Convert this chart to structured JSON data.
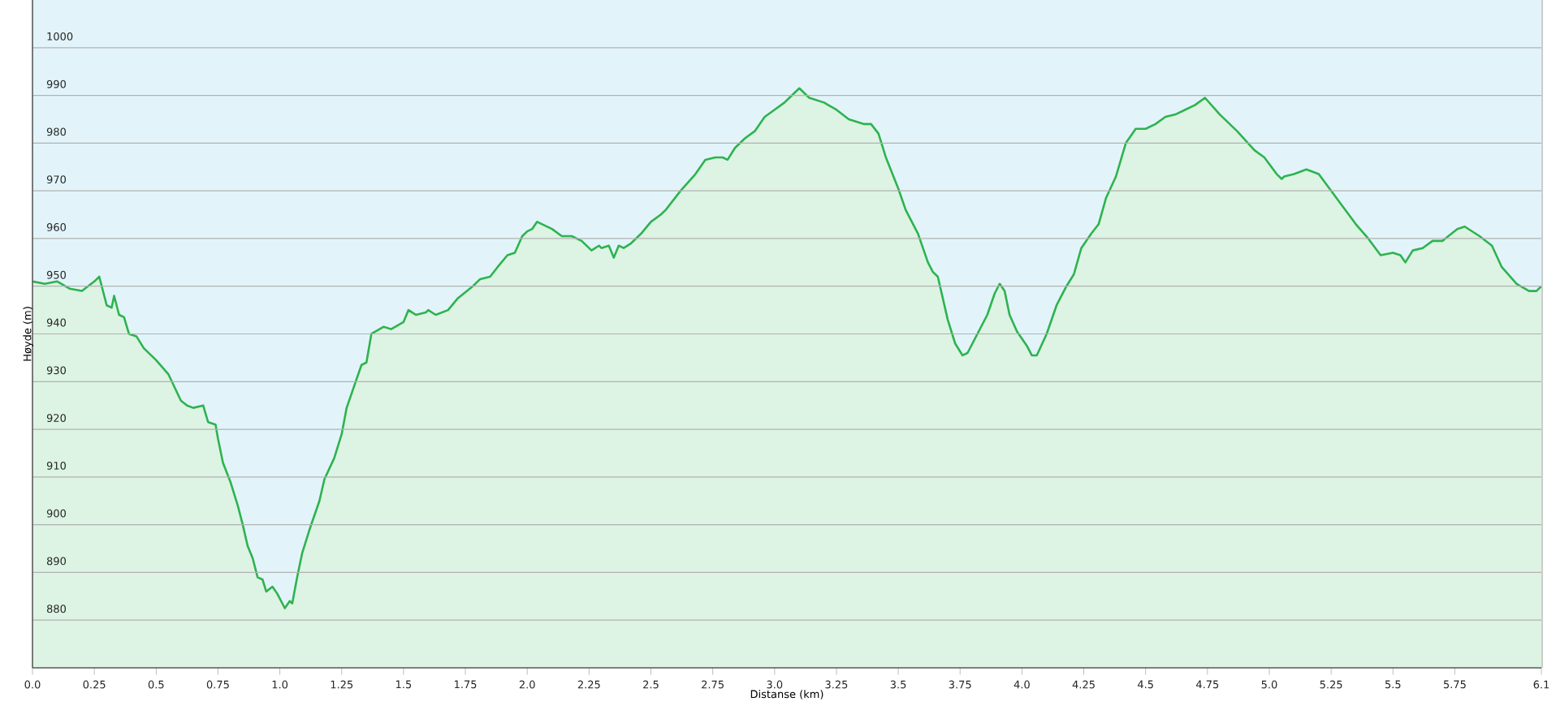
{
  "chart_data": {
    "type": "area",
    "xlabel": "Distanse  (km)",
    "ylabel": "Høyde (m)",
    "color": "#2db34f",
    "grid": "y",
    "xlim": [
      0,
      6.1
    ],
    "ylim": [
      870,
      1010
    ],
    "xticks": [
      {
        "value": 0,
        "label": "0.0"
      },
      0.25,
      0.5,
      0.75,
      {
        "value": 1,
        "label": "1.0"
      },
      1.25,
      1.5,
      1.75,
      {
        "value": 2,
        "label": "2.0"
      },
      2.25,
      2.5,
      2.75,
      {
        "value": 3,
        "label": "3.0"
      },
      3.25,
      3.5,
      3.75,
      {
        "value": 4,
        "label": "4.0"
      },
      4.25,
      4.5,
      4.75,
      {
        "value": 5,
        "label": "5.0"
      },
      5.25,
      5.5,
      5.75,
      6.1
    ],
    "yticks": [
      880,
      890,
      900,
      910,
      920,
      930,
      940,
      950,
      960,
      970,
      980,
      990,
      1000
    ],
    "x": [
      0.0,
      0.05,
      0.1,
      0.15,
      0.2,
      0.25,
      0.27,
      0.29,
      0.3,
      0.32,
      0.33,
      0.35,
      0.37,
      0.39,
      0.42,
      0.45,
      0.5,
      0.55,
      0.6,
      0.625,
      0.65,
      0.69,
      0.71,
      0.74,
      0.75,
      0.77,
      0.8,
      0.83,
      0.85,
      0.87,
      0.89,
      0.91,
      0.93,
      0.945,
      0.97,
      0.99,
      1.02,
      1.04,
      1.05,
      1.07,
      1.09,
      1.12,
      1.16,
      1.18,
      1.22,
      1.25,
      1.27,
      1.3,
      1.33,
      1.35,
      1.37,
      1.42,
      1.45,
      1.5,
      1.52,
      1.55,
      1.59,
      1.6,
      1.63,
      1.68,
      1.72,
      1.78,
      1.81,
      1.85,
      1.88,
      1.92,
      1.95,
      1.98,
      2.0,
      2.02,
      2.04,
      2.1,
      2.14,
      2.18,
      2.22,
      2.26,
      2.29,
      2.3,
      2.33,
      2.35,
      2.37,
      2.39,
      2.42,
      2.46,
      2.5,
      2.54,
      2.56,
      2.62,
      2.68,
      2.72,
      2.76,
      2.79,
      2.81,
      2.84,
      2.88,
      2.92,
      2.96,
      3.0,
      3.04,
      3.06,
      3.1,
      3.14,
      3.2,
      3.25,
      3.3,
      3.36,
      3.39,
      3.42,
      3.45,
      3.5,
      3.53,
      3.58,
      3.62,
      3.64,
      3.66,
      3.7,
      3.73,
      3.76,
      3.78,
      3.8,
      3.83,
      3.86,
      3.89,
      3.91,
      3.93,
      3.95,
      3.98,
      4.02,
      4.04,
      4.06,
      4.1,
      4.14,
      4.18,
      4.21,
      4.24,
      4.28,
      4.31,
      4.34,
      4.38,
      4.42,
      4.46,
      4.5,
      4.54,
      4.58,
      4.62,
      4.66,
      4.7,
      4.74,
      4.8,
      4.87,
      4.94,
      4.98,
      5.03,
      5.05,
      5.06,
      5.1,
      5.15,
      5.2,
      5.25,
      5.3,
      5.35,
      5.4,
      5.45,
      5.5,
      5.53,
      5.55,
      5.58,
      5.62,
      5.66,
      5.7,
      5.76,
      5.79,
      5.85,
      5.9,
      5.94,
      6.0,
      6.05,
      6.08,
      6.1
    ],
    "values": [
      951,
      950.5,
      951,
      949.5,
      949,
      951,
      952,
      948,
      946,
      945.5,
      948,
      944,
      943.5,
      940,
      939.5,
      937,
      934.5,
      931.5,
      926,
      925,
      924.5,
      925,
      921.5,
      921,
      918,
      913,
      909,
      904,
      900,
      895.5,
      893,
      889,
      888.5,
      886,
      887,
      885.5,
      882.5,
      884,
      883.5,
      889,
      894,
      899,
      905,
      909.5,
      914,
      919,
      924.5,
      929,
      933.5,
      934,
      940,
      941.5,
      941,
      942.5,
      945,
      944,
      944.5,
      945,
      944,
      945,
      947.5,
      950,
      951.5,
      952,
      954,
      956.5,
      957,
      960.5,
      961.5,
      962,
      963.5,
      962,
      960.5,
      960.5,
      959.5,
      957.5,
      958.5,
      958,
      958.5,
      956,
      958.5,
      958,
      959,
      961,
      963.5,
      965,
      966,
      970,
      973.5,
      976.5,
      977,
      977,
      976.5,
      979,
      981,
      982.5,
      985.5,
      987,
      988.5,
      989.5,
      991.5,
      989.5,
      988.5,
      987,
      985,
      984,
      984,
      982,
      977,
      970.5,
      966,
      961,
      955,
      953,
      952,
      943,
      938,
      935.5,
      936,
      938,
      941,
      944,
      948.5,
      950.5,
      949,
      944,
      940.5,
      937.5,
      935.5,
      935.5,
      940,
      946,
      950,
      952.5,
      958,
      961,
      963,
      968.5,
      973,
      980,
      983,
      983,
      984,
      985.5,
      986,
      987,
      988,
      989.5,
      986,
      982.5,
      978.5,
      977,
      973.5,
      972.5,
      973,
      973.5,
      974.5,
      973.5,
      970,
      966.5,
      963,
      960,
      956.5,
      957,
      956.5,
      955,
      957.5,
      958,
      959.5,
      959.5,
      962,
      962.5,
      960.5,
      958.5,
      954,
      950.5,
      949,
      949,
      950
    ]
  }
}
